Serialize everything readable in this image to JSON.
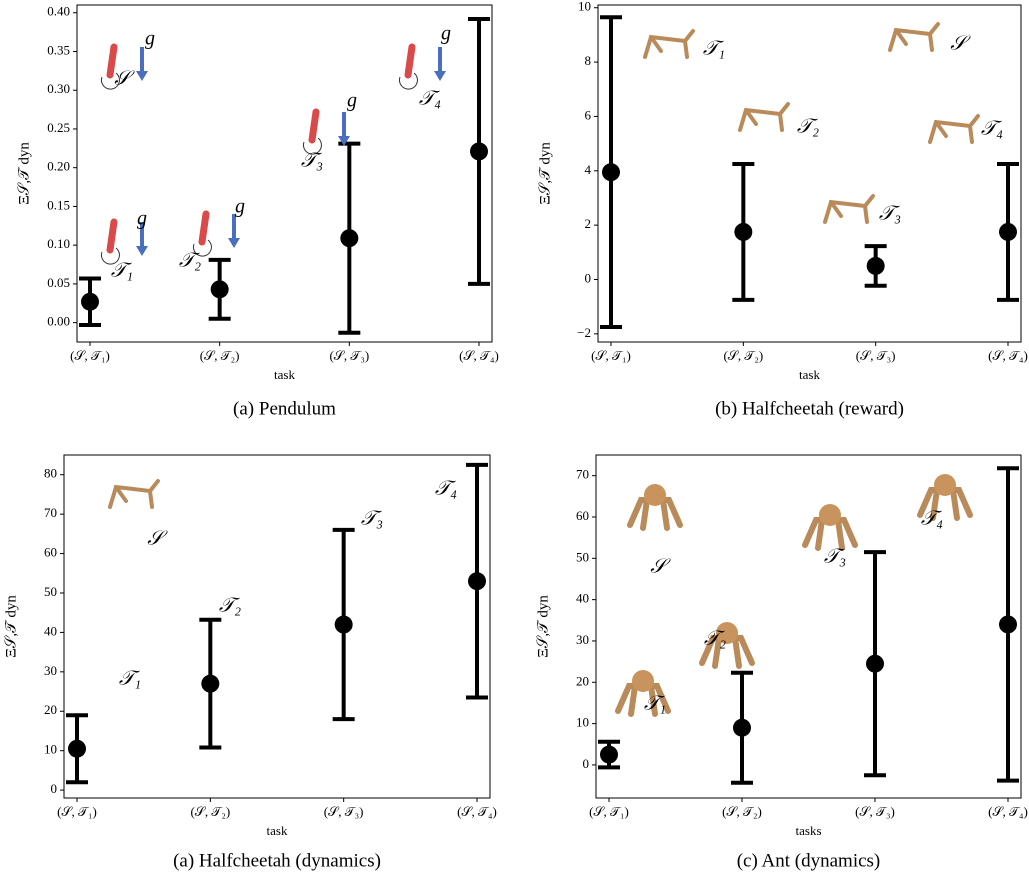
{
  "chart_data": [
    {
      "type": "errorbar",
      "title": "(a) Pendulum",
      "x_label": "task",
      "y_label": "Ξ𝒮,𝒯 dyn",
      "categories": [
        "(𝒮, 𝒯₁)",
        "(𝒮, 𝒯₂)",
        "(𝒮, 𝒯₃)",
        "(𝒮, 𝒯₄)"
      ],
      "values": [
        0.027,
        0.043,
        0.109,
        0.221
      ],
      "errors": [
        0.03,
        0.038,
        0.122,
        0.171
      ],
      "color": "#000000",
      "ylim": [
        -0.025,
        0.41
      ],
      "yticks": [
        {
          "value": 0,
          "label": "0.00"
        },
        {
          "value": 0.05,
          "label": "0.05"
        },
        {
          "value": 0.1,
          "label": "0.10"
        },
        {
          "value": 0.15,
          "label": "0.15"
        },
        {
          "value": 0.2,
          "label": "0.20"
        },
        {
          "value": 0.25,
          "label": "0.25"
        },
        {
          "value": 0.3,
          "label": "0.30"
        },
        {
          "value": 0.35,
          "label": "0.35"
        },
        {
          "value": 0.4,
          "label": "0.40"
        }
      ],
      "annotations": [
        "𝒮",
        "𝒯₁",
        "𝒯₂",
        "𝒯₃",
        "𝒯₄",
        "g",
        "g",
        "g",
        "g",
        "g"
      ],
      "grid": false
    },
    {
      "type": "errorbar",
      "title": "(b) Halfcheetah (reward)",
      "x_label": "task",
      "y_label": "Ξ𝒮,𝒯 dyn",
      "categories": [
        "(𝒮, 𝒯₁)",
        "(𝒮, 𝒯₂)",
        "(𝒮, 𝒯₃)",
        "(𝒮, 𝒯₄)"
      ],
      "values": [
        3.95,
        1.75,
        0.5,
        1.75
      ],
      "errors": [
        5.7,
        2.5,
        0.73,
        2.5
      ],
      "color": "#000000",
      "ylim": [
        -2.3,
        10.1
      ],
      "yticks": [
        {
          "value": -2,
          "label": "−2"
        },
        0,
        2,
        4,
        6,
        8,
        10
      ],
      "annotations": [
        "𝒮",
        "𝒯₁",
        "𝒯₂",
        "𝒯₃",
        "𝒯₄"
      ],
      "grid": false
    },
    {
      "type": "errorbar",
      "title": "(a) Halfcheetah (dynamics)",
      "x_label": "task",
      "y_label": "Ξ𝒮,𝒯 dyn",
      "categories": [
        "(𝒮, 𝒯₁)",
        "(𝒮, 𝒯₂)",
        "(𝒮, 𝒯₃)",
        "(𝒮, 𝒯₄)"
      ],
      "values": [
        10.5,
        27,
        42,
        53
      ],
      "errors": [
        8.5,
        16.2,
        24,
        29.5
      ],
      "color": "#000000",
      "ylim": [
        -2,
        85
      ],
      "yticks": [
        0,
        10,
        20,
        30,
        40,
        50,
        60,
        70,
        80
      ],
      "annotations": [
        "𝒮",
        "𝒯₁",
        "𝒯₂",
        "𝒯₃",
        "𝒯₄"
      ],
      "grid": false
    },
    {
      "type": "errorbar",
      "title": "(c) Ant (dynamics)",
      "x_label": "tasks",
      "y_label": "Ξ𝒮,𝒯 dyn",
      "categories": [
        "(𝒮, 𝒯₁)",
        "(𝒮, 𝒯₂)",
        "(𝒮, 𝒯₃)",
        "(𝒮, 𝒯₄)"
      ],
      "values": [
        2.5,
        9,
        24.5,
        34
      ],
      "errors": [
        3.1,
        13.3,
        27,
        37.8
      ],
      "color": "#000000",
      "ylim": [
        -8,
        75
      ],
      "yticks": [
        0,
        10,
        20,
        30,
        40,
        50,
        60,
        70
      ],
      "annotations": [
        "𝒮",
        "𝒯₁",
        "𝒯₂",
        "𝒯₃",
        "𝒯₄"
      ],
      "grid": false
    }
  ]
}
